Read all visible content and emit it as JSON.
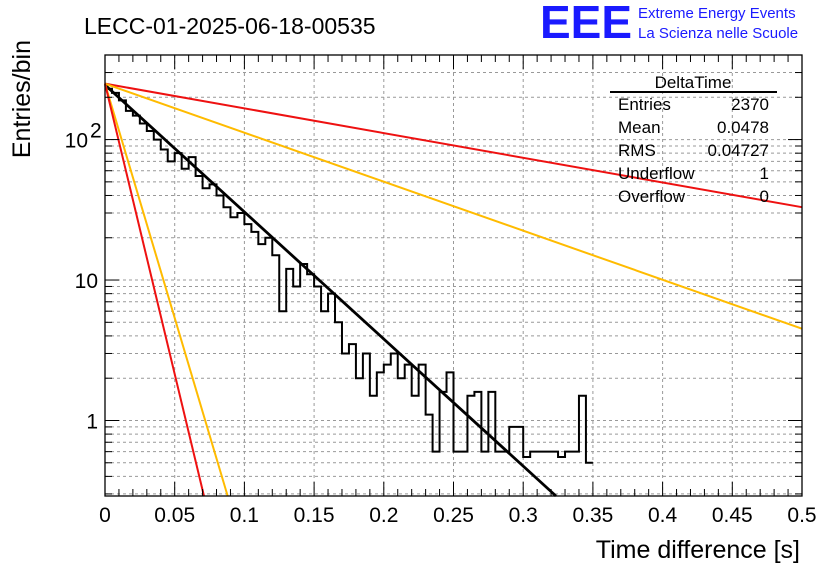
{
  "run_title": "LECC-01-2025-06-18-00535",
  "logo": {
    "mark": "EEE",
    "line1": "Extreme Energy Events",
    "line2": "La Scienza nelle Scuole"
  },
  "stats": {
    "name": "DeltaTime",
    "rows": [
      {
        "label": "Entries",
        "value": "2370"
      },
      {
        "label": "Mean",
        "value": "0.0478"
      },
      {
        "label": "RMS",
        "value": "0.04727"
      },
      {
        "label": "Underflow",
        "value": "1"
      },
      {
        "label": "Overflow",
        "value": "0"
      }
    ]
  },
  "chart_data": {
    "type": "line",
    "title": "LECC-01-2025-06-18-00535",
    "xlabel": "Time difference [s]",
    "ylabel": "Entries/bin",
    "xlim": [
      0,
      0.5
    ],
    "ylim": [
      0.29,
      400
    ],
    "log_y": true,
    "grid": true,
    "bin_width": 0.005,
    "xticks": [
      "0",
      "0.05",
      "0.1",
      "0.15",
      "0.2",
      "0.25",
      "0.3",
      "0.35",
      "0.4",
      "0.45",
      "0.5"
    ],
    "yticks": [
      {
        "value": 1,
        "label": "1"
      },
      {
        "value": 10,
        "label": "10"
      },
      {
        "value": 100,
        "label": "10",
        "exp": "2"
      }
    ],
    "histogram": [
      230,
      215,
      190,
      160,
      148,
      130,
      115,
      100,
      85,
      70,
      80,
      62,
      75,
      55,
      45,
      48,
      40,
      33,
      28,
      30,
      25,
      22,
      18,
      20,
      15,
      6,
      12,
      9,
      13,
      11,
      9,
      6,
      8,
      5,
      3,
      3.5,
      2,
      3,
      1.5,
      2.2,
      2.5,
      3,
      2,
      2.5,
      1.5,
      2.5,
      1.1,
      0.6,
      1.6,
      2.2,
      0.6,
      0.6,
      1.5,
      1.6,
      0.6,
      1.6,
      0.6,
      0.6,
      0.9,
      0.9,
      0.55,
      0.6,
      0.6,
      0.6,
      0.6,
      0.55,
      0.6,
      0.6,
      1.5,
      0.5
    ],
    "series": [
      {
        "color": "#000000",
        "points": [
          [
            0,
            245
          ],
          [
            0.3235,
            0.29
          ]
        ]
      },
      {
        "color": "#ee1111",
        "points": [
          [
            0,
            250
          ],
          [
            0.5,
            33
          ]
        ]
      },
      {
        "color": "#ffbb00",
        "points": [
          [
            0,
            250
          ],
          [
            0.5,
            4.5
          ]
        ]
      },
      {
        "color": "#ffbb00",
        "points": [
          [
            0,
            250
          ],
          [
            0.088,
            0.29
          ]
        ]
      },
      {
        "color": "#ee1111",
        "points": [
          [
            0,
            250
          ],
          [
            0.071,
            0.29
          ]
        ]
      }
    ]
  }
}
